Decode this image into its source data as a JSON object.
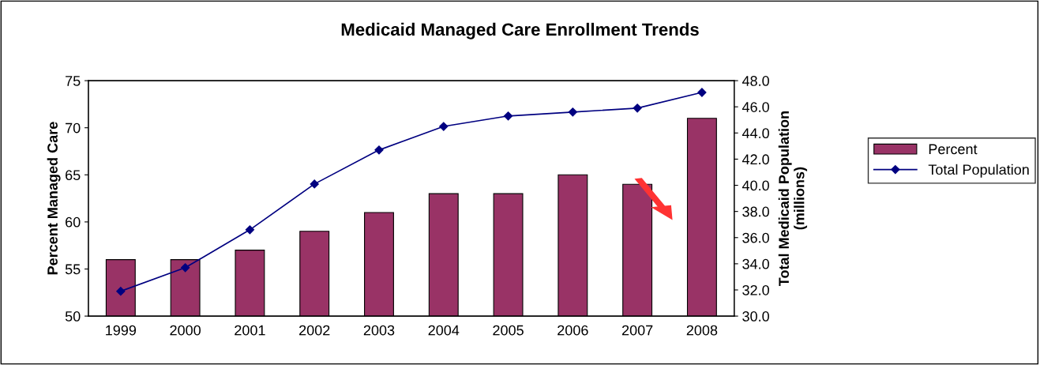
{
  "chart_data": {
    "type": "bar",
    "title": "Medicaid Managed Care Enrollment Trends",
    "categories": [
      "1999",
      "2000",
      "2001",
      "2002",
      "2003",
      "2004",
      "2005",
      "2006",
      "2007",
      "2008"
    ],
    "series": [
      {
        "name": "Percent",
        "color": "#993366",
        "values": [
          56,
          56,
          57,
          59,
          61,
          63,
          63,
          65,
          64,
          71
        ]
      },
      {
        "name": "Total Population",
        "type": "line",
        "axis": "y2",
        "color": "#000080",
        "values": [
          31.9,
          33.7,
          36.6,
          40.1,
          42.7,
          44.5,
          45.3,
          45.6,
          45.9,
          47.1
        ]
      }
    ],
    "ylabel": "Percent Managed Care",
    "y2label": "Total Medicaid Population\n(millions)",
    "ylim": [
      50,
      75
    ],
    "yticks": [
      50,
      55,
      60,
      65,
      70,
      75
    ],
    "y2lim": [
      30,
      48
    ],
    "y2ticks": [
      {
        "value": 30,
        "label": "30.0"
      },
      {
        "value": 32,
        "label": "32.0"
      },
      {
        "value": 34,
        "label": "34.0"
      },
      {
        "value": 36,
        "label": "36.0"
      },
      {
        "value": 38,
        "label": "38.0"
      },
      {
        "value": 40,
        "label": "40.0"
      },
      {
        "value": 42,
        "label": "42.0"
      },
      {
        "value": 44,
        "label": "44.0"
      },
      {
        "value": 46,
        "label": "46.0"
      },
      {
        "value": 48,
        "label": "48.0"
      }
    ],
    "marker": "diamond",
    "grid": false,
    "legend": "right"
  }
}
